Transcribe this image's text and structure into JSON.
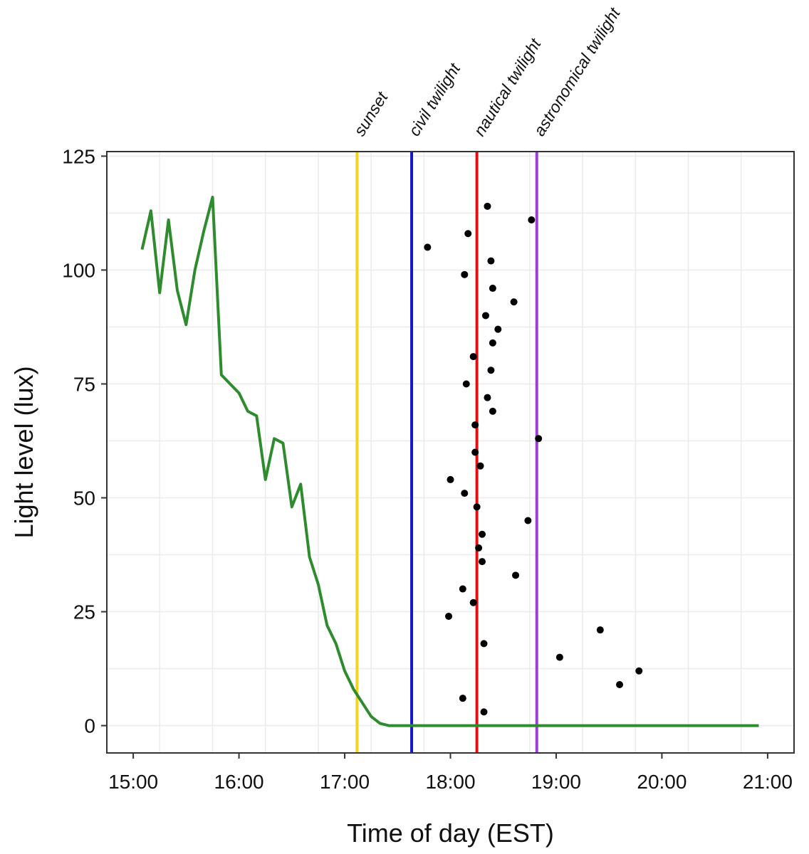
{
  "chart_data": {
    "type": "line",
    "title": "",
    "xlabel": "Time of day (EST)",
    "ylabel": "Light level (lux)",
    "xlim": [
      "14:45",
      "21:15"
    ],
    "ylim": [
      -6,
      126
    ],
    "x_ticks": [
      "15:00",
      "16:00",
      "17:00",
      "18:00",
      "19:00",
      "20:00",
      "21:00"
    ],
    "y_ticks": [
      0,
      25,
      50,
      75,
      100,
      125
    ],
    "grid": true,
    "legend": "none",
    "series": [
      {
        "kind": "line",
        "color": "#2e8b2e",
        "points": [
          [
            "15:05",
            104.5
          ],
          [
            "15:10",
            113
          ],
          [
            "15:15",
            95
          ],
          [
            "15:20",
            111
          ],
          [
            "15:25",
            95.5
          ],
          [
            "15:30",
            88
          ],
          [
            "15:35",
            100
          ],
          [
            "15:40",
            108.5
          ],
          [
            "15:45",
            116
          ],
          [
            "15:50",
            77
          ],
          [
            "15:55",
            75
          ],
          [
            "16:00",
            73
          ],
          [
            "16:05",
            69
          ],
          [
            "16:10",
            68
          ],
          [
            "16:15",
            54
          ],
          [
            "16:20",
            63
          ],
          [
            "16:25",
            62
          ],
          [
            "16:30",
            48
          ],
          [
            "16:35",
            53
          ],
          [
            "16:40",
            37
          ],
          [
            "16:45",
            31
          ],
          [
            "16:50",
            22
          ],
          [
            "16:55",
            18
          ],
          [
            "17:00",
            12
          ],
          [
            "17:05",
            8
          ],
          [
            "17:10",
            5
          ],
          [
            "17:15",
            2
          ],
          [
            "17:20",
            0.5
          ],
          [
            "17:25",
            0
          ],
          [
            "18:00",
            0
          ],
          [
            "19:00",
            0
          ],
          [
            "20:00",
            0
          ],
          [
            "20:55",
            0
          ]
        ]
      },
      {
        "kind": "scatter",
        "color": "#000000",
        "points": [
          [
            "17:47",
            105
          ],
          [
            "18:10",
            108
          ],
          [
            "18:21",
            114
          ],
          [
            "18:23",
            102
          ],
          [
            "18:08",
            99
          ],
          [
            "18:24",
            96
          ],
          [
            "18:36",
            93
          ],
          [
            "18:20",
            90
          ],
          [
            "18:27",
            87
          ],
          [
            "18:24",
            84
          ],
          [
            "18:13",
            81
          ],
          [
            "18:23",
            78
          ],
          [
            "18:09",
            75
          ],
          [
            "18:21",
            72
          ],
          [
            "18:24",
            69
          ],
          [
            "18:14",
            66
          ],
          [
            "18:14",
            60
          ],
          [
            "18:17",
            57
          ],
          [
            "18:00",
            54
          ],
          [
            "18:08",
            51
          ],
          [
            "18:15",
            48
          ],
          [
            "18:18",
            42
          ],
          [
            "18:16",
            39
          ],
          [
            "18:18",
            36
          ],
          [
            "18:07",
            30
          ],
          [
            "18:13",
            27
          ],
          [
            "17:59",
            24
          ],
          [
            "18:19",
            18
          ],
          [
            "18:07",
            6
          ],
          [
            "18:19",
            3
          ],
          [
            "18:46",
            111
          ],
          [
            "18:50",
            63
          ],
          [
            "18:44",
            45
          ],
          [
            "18:37",
            33
          ],
          [
            "19:02",
            15
          ],
          [
            "19:25",
            21
          ],
          [
            "19:36",
            9
          ],
          [
            "19:47",
            12
          ]
        ]
      }
    ],
    "events": [
      {
        "label": "sunset",
        "time": "17:07",
        "color": "#f2d41c"
      },
      {
        "label": "civil twilight",
        "time": "17:38",
        "color": "#1616c8"
      },
      {
        "label": "nautical twilight",
        "time": "18:15",
        "color": "#e01010"
      },
      {
        "label": "astronomical twilight",
        "time": "18:49",
        "color": "#9b3fd0"
      }
    ]
  }
}
